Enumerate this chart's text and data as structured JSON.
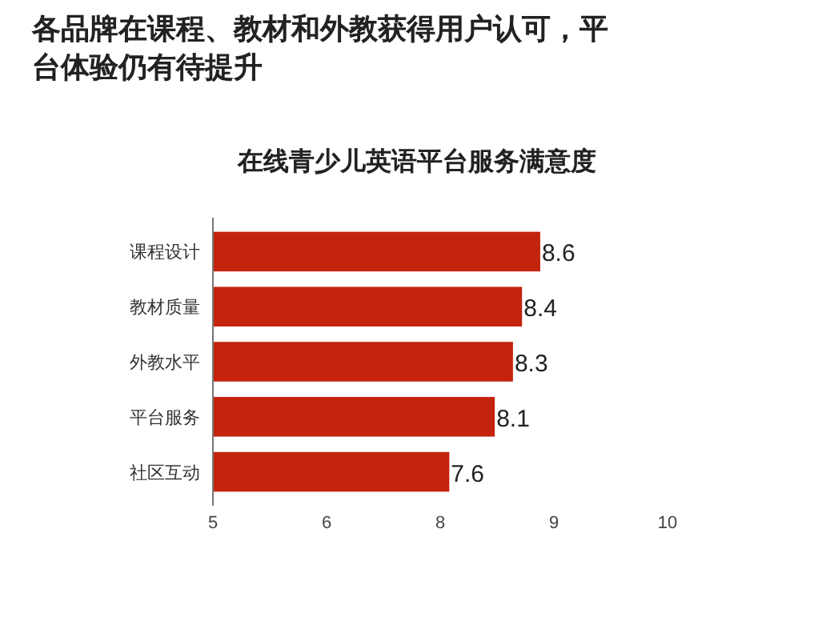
{
  "chart_data": {
    "type": "bar",
    "orientation": "horizontal",
    "title": "各品牌在课程、教材和外教获得用户认可，平台体验仍有待提升",
    "subtitle": "在线青少儿英语平台服务满意度",
    "categories": [
      "课程设计",
      "教材质量",
      "外教水平",
      "平台服务",
      "社区互动"
    ],
    "values": [
      8.6,
      8.4,
      8.3,
      8.1,
      7.6
    ],
    "color": "#c4230e",
    "data_labels": true,
    "xlim": [
      5,
      10
    ],
    "xticks": [
      5,
      {
        "value": 6.25,
        "label": "6"
      },
      {
        "value": 7.5,
        "label": "8"
      },
      {
        "value": 8.75,
        "label": "9"
      },
      10
    ],
    "grid": false
  }
}
